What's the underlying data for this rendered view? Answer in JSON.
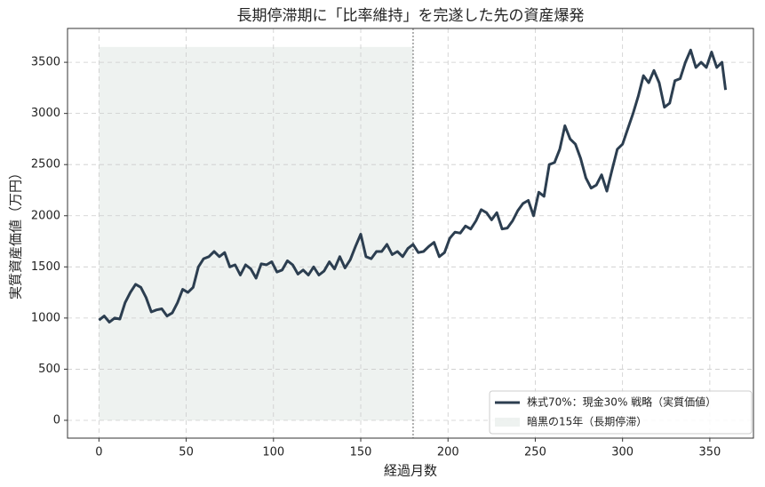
{
  "chart_data": {
    "type": "line",
    "title": "長期停滞期に「比率維持」を完遂した先の資産爆発",
    "x_label": "経過月数",
    "y_label": "実質資産価値（万円）",
    "x": [
      0,
      3,
      6,
      9,
      12,
      15,
      18,
      21,
      24,
      27,
      30,
      33,
      36,
      39,
      42,
      45,
      48,
      51,
      54,
      57,
      60,
      63,
      66,
      69,
      72,
      75,
      78,
      81,
      84,
      87,
      90,
      93,
      96,
      99,
      102,
      105,
      108,
      111,
      114,
      117,
      120,
      123,
      126,
      129,
      132,
      135,
      138,
      141,
      144,
      147,
      150,
      153,
      156,
      159,
      162,
      165,
      168,
      171,
      174,
      177,
      180,
      183,
      186,
      189,
      192,
      195,
      198,
      201,
      204,
      207,
      210,
      213,
      216,
      219,
      222,
      225,
      228,
      231,
      234,
      237,
      240,
      243,
      246,
      249,
      252,
      255,
      258,
      261,
      264,
      267,
      270,
      273,
      276,
      279,
      282,
      285,
      288,
      291,
      294,
      297,
      300,
      303,
      306,
      309,
      312,
      315,
      318,
      321,
      324,
      327,
      330,
      333,
      336,
      339,
      342,
      345,
      348,
      351,
      354,
      357,
      359
    ],
    "series": [
      {
        "name": "株式70%：現金30% 戦略（実質価値）",
        "color": "#2c3e50",
        "values": [
          980,
          1020,
          960,
          1000,
          990,
          1150,
          1250,
          1330,
          1300,
          1200,
          1060,
          1080,
          1090,
          1020,
          1050,
          1150,
          1280,
          1250,
          1300,
          1500,
          1580,
          1600,
          1650,
          1600,
          1640,
          1500,
          1520,
          1420,
          1520,
          1480,
          1390,
          1530,
          1520,
          1550,
          1450,
          1470,
          1560,
          1520,
          1430,
          1470,
          1420,
          1500,
          1420,
          1460,
          1550,
          1480,
          1600,
          1490,
          1570,
          1700,
          1820,
          1600,
          1580,
          1650,
          1650,
          1720,
          1620,
          1650,
          1600,
          1680,
          1720,
          1640,
          1650,
          1700,
          1740,
          1600,
          1640,
          1780,
          1840,
          1830,
          1900,
          1870,
          1950,
          2060,
          2030,
          1960,
          2030,
          1870,
          1880,
          1950,
          2050,
          2120,
          2150,
          2000,
          2230,
          2190,
          2500,
          2520,
          2650,
          2880,
          2750,
          2700,
          2560,
          2370,
          2270,
          2300,
          2400,
          2240,
          2450,
          2650,
          2700,
          2850,
          3000,
          3170,
          3370,
          3300,
          3420,
          3300,
          3060,
          3100,
          3320,
          3340,
          3500,
          3620,
          3450,
          3500,
          3450,
          3600,
          3450,
          3500,
          3230
        ]
      }
    ],
    "span": {
      "name": "暗黒の15年（長期停滞）",
      "x": [
        0,
        180
      ],
      "y": [
        0,
        3650
      ],
      "color": "#e3e9e6"
    },
    "vline": 180,
    "xlim": [
      -18,
      375
    ],
    "ylim": [
      -174,
      3831
    ],
    "xticks": [
      0,
      50,
      100,
      150,
      200,
      250,
      300,
      350
    ],
    "yticks": [
      0,
      500,
      1000,
      1500,
      2000,
      2500,
      3000,
      3500
    ],
    "grid": true,
    "legend": "lower right"
  }
}
